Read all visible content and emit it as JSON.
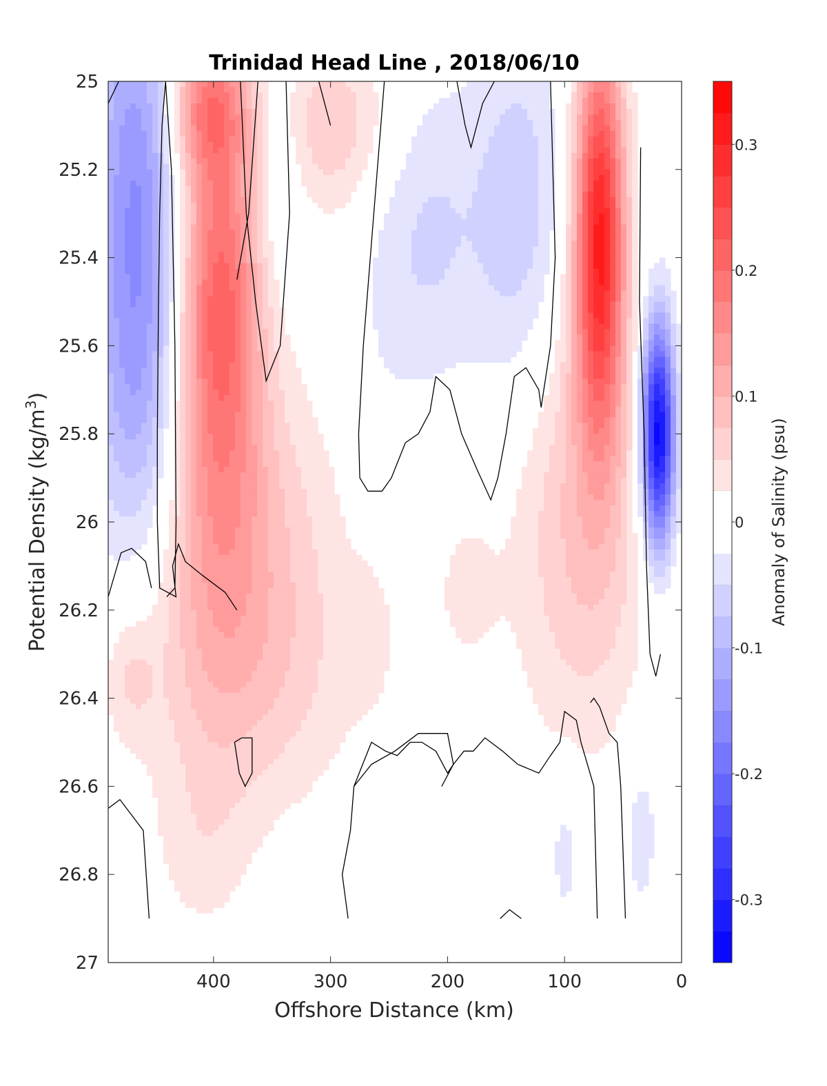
{
  "chart_data": {
    "type": "heatmap",
    "subtype": "filled-contour",
    "title": "Trinidad Head Line , 2018/06/10",
    "xlabel": "Offshore Distance (km)",
    "ylabel_main": "Potential Density (kg/m",
    "ylabel_sup": "3",
    "ylabel_tail": ")",
    "xlim": [
      490,
      0
    ],
    "x_reversed": true,
    "ylim": [
      25,
      27
    ],
    "y_reversed": true,
    "xticks": [
      400,
      300,
      200,
      100,
      0
    ],
    "yticks": [
      25,
      25.2,
      25.4,
      25.6,
      25.8,
      26,
      26.2,
      26.4,
      26.6,
      26.8,
      27
    ],
    "ytick_labels": [
      "25",
      "25.2",
      "25.4",
      "25.6",
      "25.8",
      "26",
      "26.2",
      "26.4",
      "26.6",
      "26.8",
      "27"
    ],
    "colorbar": {
      "label": "Anomaly of Salinity (psu)",
      "range": [
        -0.35,
        0.35
      ],
      "levels_step": 0.025,
      "ticks": [
        0.3,
        0.2,
        0.1,
        0,
        -0.1,
        -0.2,
        -0.3
      ],
      "tick_labels": [
        "0.3",
        "0.2",
        "0.1",
        "0",
        "-0.1",
        "-0.2",
        "-0.3"
      ],
      "colormap": "blue-white-red",
      "low_color": "#0000ff",
      "mid_color": "#ffffff",
      "high_color": "#ff0000"
    },
    "zero_contour_color": "#000000",
    "features": [
      {
        "kind": "negative",
        "x": 465,
        "y": 25.25,
        "peak": -0.15
      },
      {
        "kind": "positive",
        "x": 405,
        "y": 25.05,
        "peak": 0.15
      },
      {
        "kind": "positive",
        "x": 395,
        "y": 25.45,
        "peak": 0.18
      },
      {
        "kind": "positive",
        "x": 340,
        "y": 26.1,
        "peak": 0.06
      },
      {
        "kind": "negative",
        "x": 345,
        "y": 25.2,
        "peak": -0.04
      },
      {
        "kind": "positive",
        "x": 300,
        "y": 25.1,
        "peak": 0.07
      },
      {
        "kind": "negative",
        "x": 215,
        "y": 25.35,
        "peak": -0.05
      },
      {
        "kind": "negative",
        "x": 140,
        "y": 25.3,
        "peak": -0.07
      },
      {
        "kind": "positive",
        "x": 70,
        "y": 25.35,
        "peak": 0.3
      },
      {
        "kind": "negative",
        "x": 20,
        "y": 25.8,
        "peak": -0.35
      },
      {
        "kind": "positive",
        "x": 185,
        "y": 26.15,
        "peak": 0.03
      },
      {
        "kind": "positive",
        "x": 410,
        "y": 26.75,
        "peak": 0.03
      },
      {
        "kind": "negative",
        "x": 100,
        "y": 26.75,
        "peak": -0.04
      },
      {
        "kind": "negative",
        "x": 35,
        "y": 26.7,
        "peak": -0.04
      }
    ]
  }
}
